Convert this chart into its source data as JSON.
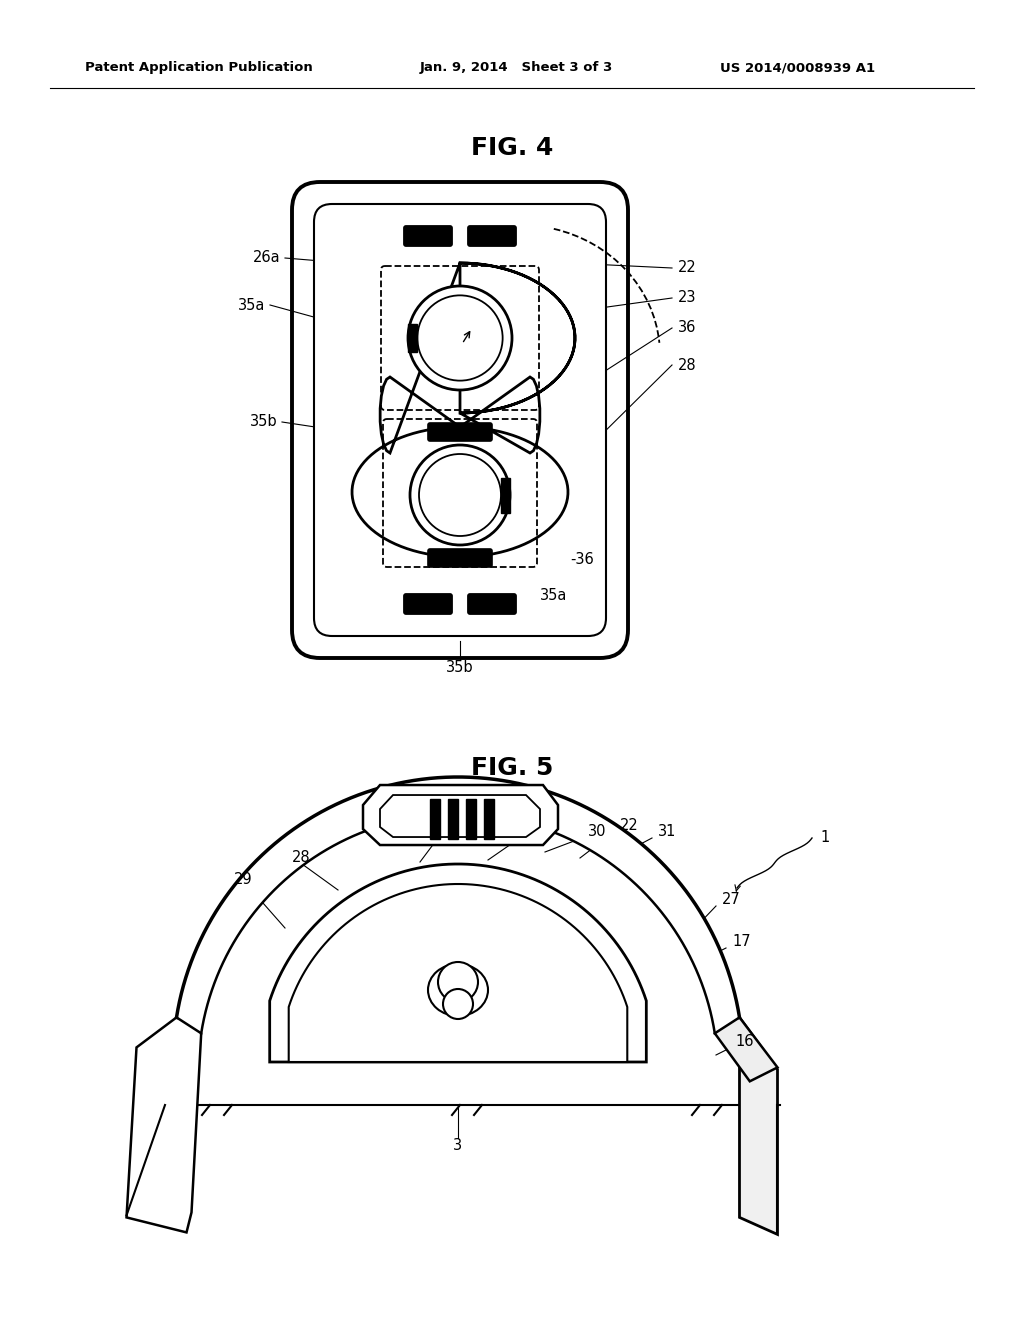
{
  "bg_color": "#ffffff",
  "header_left": "Patent Application Publication",
  "header_mid": "Jan. 9, 2014   Sheet 3 of 3",
  "header_right": "US 2014/0008939 A1",
  "fig4_title": "FIG. 4",
  "fig5_title": "FIG. 5"
}
